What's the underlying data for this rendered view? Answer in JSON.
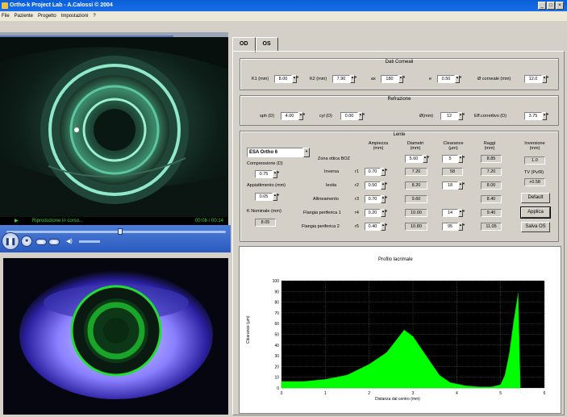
{
  "window": {
    "title": "Ortho-k Project Lab - A.Calossi © 2004"
  },
  "menu": [
    "File",
    "Paziente",
    "Progetto",
    "Impostazioni",
    "?"
  ],
  "video": {
    "status_text": "Riproduzione in corso...",
    "time_text": "00:06 / 00:14"
  },
  "tabs": [
    "OD",
    "OS"
  ],
  "dati_corneali": {
    "title": "Dati Corneali",
    "k1_label": "K1 (mm)",
    "k1": "8.00",
    "k2_label": "K2 (mm)",
    "k2": "7.90",
    "ax_label": "ax",
    "ax": "180",
    "e_label": "e",
    "e": "0.50",
    "diam_label": "Ø corneale (mm)",
    "diam": "12.0"
  },
  "refrazione": {
    "title": "Refrazione",
    "sph_label": "sph (D)",
    "sph": "4.00",
    "cyl_label": "cyl (D)",
    "cyl": "0.00",
    "ax_label": "Ø(mm)",
    "ax": "12",
    "eff_label": "Eff.correttivo (D)",
    "eff": "3.75"
  },
  "lente": {
    "title": "Lente",
    "model": "ESA Ortho 6",
    "comp_label": "Compressione (D)",
    "comp": "0.75",
    "appi_label": "Appiattimento (mm)",
    "appi": "0.05",
    "knom_label": "K Nominale (mm)",
    "knom": "8.05",
    "headers": [
      "Ampiezza (mm)",
      "Diametri (mm)",
      "Clearance (µm)",
      "Raggi (mm)",
      "Inversione (mm)"
    ],
    "rows": [
      {
        "label": "Zona ottica BOZ",
        "r": "",
        "ampiezza": "",
        "diametro": "5.60",
        "clearance": "5",
        "raggio": "8.85"
      },
      {
        "label": "Inversa",
        "r": "r1",
        "ampiezza": "0.70",
        "diametro": "7.20",
        "clearance": "58",
        "raggio": "7.20"
      },
      {
        "label": "Ievita",
        "r": "r2",
        "ampiezza": "0.50",
        "diametro": "8.20",
        "clearance": "18",
        "raggio": "8.00"
      },
      {
        "label": "Allineamento",
        "r": "r3",
        "ampiezza": "0.70",
        "diametro": "9.60",
        "clearance": "",
        "raggio": "8.40"
      },
      {
        "label": "Flangia periferica 1",
        "r": "r4",
        "ampiezza": "0.20",
        "diametro": "10.00",
        "clearance": "14",
        "raggio": "9.40"
      },
      {
        "label": "Flangia periferica 2",
        "r": "r5",
        "ampiezza": "0.40",
        "diametro": "10.80",
        "clearance": "95",
        "raggio": "11.05"
      }
    ],
    "inversione": "1.0",
    "tv_label": "TV (Pv/R)",
    "tv": "+0.58",
    "default_btn": "Default",
    "applica_btn": "Applica",
    "salva_btn": "Salva OS"
  },
  "chart_data": {
    "type": "area",
    "title": "Profilo lacrimale",
    "xlabel": "Distanza dal centro (mm)",
    "ylabel": "Clearance (µm)",
    "xlim": [
      0,
      6
    ],
    "ylim": [
      0,
      100
    ],
    "xticks": [
      0,
      1,
      2,
      3,
      4,
      5,
      6
    ],
    "yticks": [
      0,
      10,
      20,
      30,
      40,
      50,
      60,
      70,
      80,
      90,
      100
    ],
    "grid": true,
    "fill_color": "#00ff00",
    "x": [
      0,
      0.5,
      1.0,
      1.5,
      2.0,
      2.4,
      2.8,
      3.0,
      3.3,
      3.6,
      3.85,
      4.2,
      4.5,
      4.8,
      5.0,
      5.1,
      5.2,
      5.3,
      5.4,
      5.45
    ],
    "y": [
      6,
      6,
      8,
      12,
      22,
      33,
      54,
      48,
      30,
      12,
      5,
      2,
      1,
      1,
      3,
      12,
      32,
      62,
      88,
      0
    ]
  }
}
